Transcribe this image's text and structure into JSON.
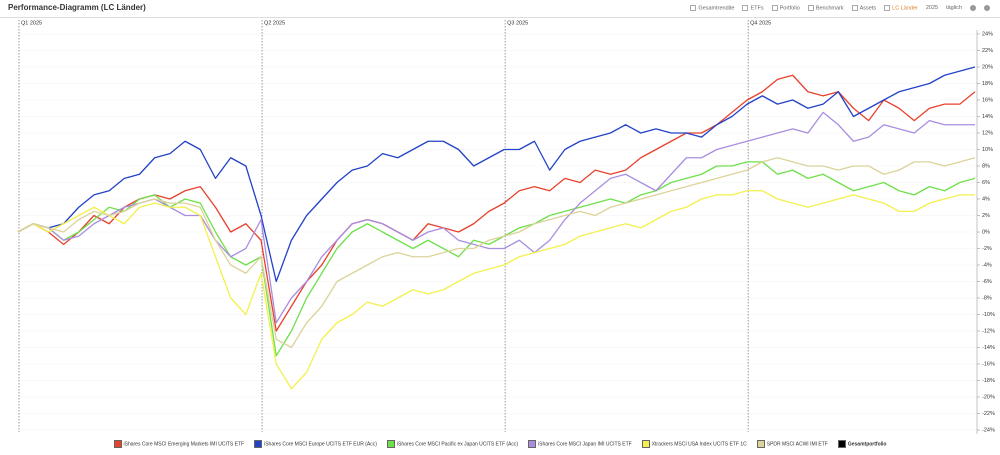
{
  "ui": {
    "title": "Performance-Diagramm (LC Länder)",
    "toolbar": [
      "Gesamtrendite",
      "ETFs",
      "Portfolio",
      "Benchmark",
      "Assets",
      "LC Länder",
      "2025",
      "täglich"
    ]
  },
  "chart_data": {
    "type": "line",
    "categories": [
      "Q1 2025",
      null,
      null,
      null,
      null,
      null,
      null,
      null,
      null,
      null,
      null,
      null,
      null,
      null,
      null,
      null,
      "Q2 2025",
      null,
      null,
      null,
      null,
      null,
      null,
      null,
      null,
      null,
      null,
      null,
      null,
      null,
      null,
      null,
      "Q3 2025",
      null,
      null,
      null,
      null,
      null,
      null,
      null,
      null,
      null,
      null,
      null,
      null,
      null,
      null,
      null,
      "Q4 2025",
      null,
      null,
      null,
      null,
      null,
      null,
      null,
      null,
      null,
      null,
      null,
      null,
      null,
      null,
      null
    ],
    "series": [
      {
        "name": "iShares Core MSCI Emerging Markets IMI UCITS ETF",
        "color": "#e8412c",
        "values": [
          0,
          1,
          0,
          -1.5,
          0,
          2,
          1,
          3,
          4,
          4.5,
          4,
          5,
          5.5,
          3,
          0,
          1,
          -1,
          -12,
          -9,
          -6,
          -4,
          -1,
          1,
          1.5,
          1,
          0,
          -1,
          1,
          0.5,
          0,
          1,
          2.5,
          3.5,
          5,
          5.5,
          5,
          6.5,
          6,
          7.5,
          7,
          7.5,
          9,
          10,
          11,
          12,
          12,
          13,
          14.5,
          16,
          17,
          18.5,
          19,
          17,
          16.5,
          17,
          15,
          13.5,
          16,
          15,
          13.5,
          15,
          15.5,
          15.5,
          17
        ]
      },
      {
        "name": "iShares Core MSCI Europe UCITS ETF EUR (Acc)",
        "color": "#2242c8",
        "values": [
          0,
          1,
          0.5,
          1,
          3,
          4.5,
          5,
          6.5,
          7,
          9,
          9.5,
          11,
          10,
          6.5,
          9,
          8,
          2,
          -6,
          -1,
          2,
          4,
          6,
          7.5,
          8,
          9.5,
          9,
          10,
          11,
          11,
          10,
          8,
          9,
          10,
          10,
          11,
          7.5,
          10,
          11,
          11.5,
          12,
          13,
          12,
          12.5,
          12,
          12,
          11.5,
          13,
          14,
          15.5,
          16.5,
          15.5,
          16,
          15,
          15.5,
          17,
          14,
          15,
          16,
          17,
          17.5,
          18,
          19,
          19.5,
          20
        ]
      },
      {
        "name": "iShares Core MSCI Pacific ex Japan UCITS ETF (Acc)",
        "color": "#6ee04a",
        "values": [
          0,
          1,
          0.5,
          -1,
          0,
          1.5,
          3,
          2.5,
          4,
          4.5,
          3,
          4,
          3.5,
          0,
          -3,
          -4,
          -3,
          -15,
          -12,
          -8,
          -5,
          -2,
          0,
          1,
          0,
          -1,
          -2,
          -1,
          -2,
          -3,
          -1,
          -1.5,
          -0.5,
          0.5,
          1,
          2,
          2.5,
          3,
          3.5,
          4,
          3.5,
          4.5,
          5,
          6,
          6.5,
          7,
          8,
          8,
          8.5,
          8.5,
          7,
          7.5,
          6.5,
          7,
          6,
          5,
          5.5,
          6,
          5,
          4.5,
          5.5,
          5,
          6,
          6.5
        ]
      },
      {
        "name": "iShares Core MSCI Japan IMI UCITS ETF",
        "color": "#a98ee0",
        "values": [
          0,
          1,
          0.5,
          -1,
          -0.5,
          1,
          2,
          3,
          3.5,
          4,
          3,
          2,
          2,
          -1,
          -3,
          -2,
          1.5,
          -11,
          -8,
          -6,
          -3,
          -1,
          1,
          1.5,
          1,
          0,
          -1,
          0,
          0.5,
          -1,
          -1.5,
          -2,
          -2,
          -1,
          -2.5,
          -1,
          1.5,
          3.5,
          5,
          6.5,
          7,
          6,
          5,
          7,
          9,
          9,
          10,
          10.5,
          11,
          11.5,
          12,
          12.5,
          12,
          14.5,
          13,
          11,
          11.5,
          13,
          12.5,
          12,
          13.5,
          13,
          13,
          13
        ]
      },
      {
        "name": "Xtrackers MSCI USA Index UCITS ETF 1C",
        "color": "#f3f04e",
        "values": [
          0,
          1,
          0,
          1,
          2,
          3,
          2,
          1,
          3,
          3.5,
          3,
          3,
          2,
          -3,
          -8,
          -10,
          -5,
          -16,
          -19,
          -17,
          -13,
          -11,
          -10,
          -8.5,
          -9,
          -8,
          -7,
          -7.5,
          -7,
          -6,
          -5,
          -4.5,
          -4,
          -3,
          -2.5,
          -2,
          -1.5,
          -0.5,
          0,
          0.5,
          1,
          0.5,
          1.5,
          2.5,
          3,
          4,
          4.5,
          4.5,
          5,
          5,
          4,
          3.5,
          3,
          3.5,
          4,
          4.5,
          4,
          3.5,
          2.5,
          2.5,
          3.5,
          4,
          4.5,
          4.5
        ]
      },
      {
        "name": "SPDR MSCI ACWI IMI ETF",
        "color": "#dcd39a",
        "values": [
          0,
          1,
          0.5,
          0,
          1.5,
          2.5,
          2,
          2.5,
          3.5,
          4,
          3.5,
          3.5,
          3,
          -1,
          -4,
          -5,
          -3,
          -13,
          -14,
          -11,
          -9,
          -6,
          -5,
          -4,
          -3,
          -2.5,
          -3,
          -3,
          -2.5,
          -2,
          -2,
          -1,
          -0.5,
          0,
          1,
          1.5,
          2,
          2.5,
          2,
          3,
          3.5,
          4,
          4.5,
          5,
          5.5,
          6,
          6.5,
          7,
          7.5,
          8.5,
          9,
          8.5,
          8,
          8,
          7.5,
          8,
          8,
          7,
          7.5,
          8.5,
          8.5,
          8,
          8.5,
          9
        ]
      }
    ],
    "extra_legend": [
      {
        "name": "Gesamtportfolio",
        "color": "#000000"
      }
    ],
    "ylim": [
      -24,
      24
    ],
    "yticks": [
      {
        "value": 24,
        "label": "24%"
      },
      {
        "value": 22,
        "label": "22%"
      },
      {
        "value": 20,
        "label": "20%"
      },
      {
        "value": 18,
        "label": "18%"
      },
      {
        "value": 16,
        "label": "16%"
      },
      {
        "value": 14,
        "label": "14%"
      },
      {
        "value": 12,
        "label": "12%"
      },
      {
        "value": 10,
        "label": "10%"
      },
      {
        "value": 8,
        "label": "8%"
      },
      {
        "value": 6,
        "label": "6%"
      },
      {
        "value": 4,
        "label": "4%"
      },
      {
        "value": 2,
        "label": "2%"
      },
      {
        "value": 0,
        "label": "0%"
      },
      {
        "value": -2,
        "label": "-2%"
      },
      {
        "value": -4,
        "label": "-4%"
      },
      {
        "value": -6,
        "label": "-6%"
      },
      {
        "value": -8,
        "label": "-8%"
      },
      {
        "value": -10,
        "label": "-10%"
      },
      {
        "value": -12,
        "label": "-12%"
      },
      {
        "value": -14,
        "label": "-14%"
      },
      {
        "value": -16,
        "label": "-16%"
      },
      {
        "value": -18,
        "label": "-18%"
      },
      {
        "value": -20,
        "label": "-20%"
      },
      {
        "value": -22,
        "label": "-22%"
      },
      {
        "value": -24,
        "label": "-24%"
      }
    ],
    "grid": true
  }
}
